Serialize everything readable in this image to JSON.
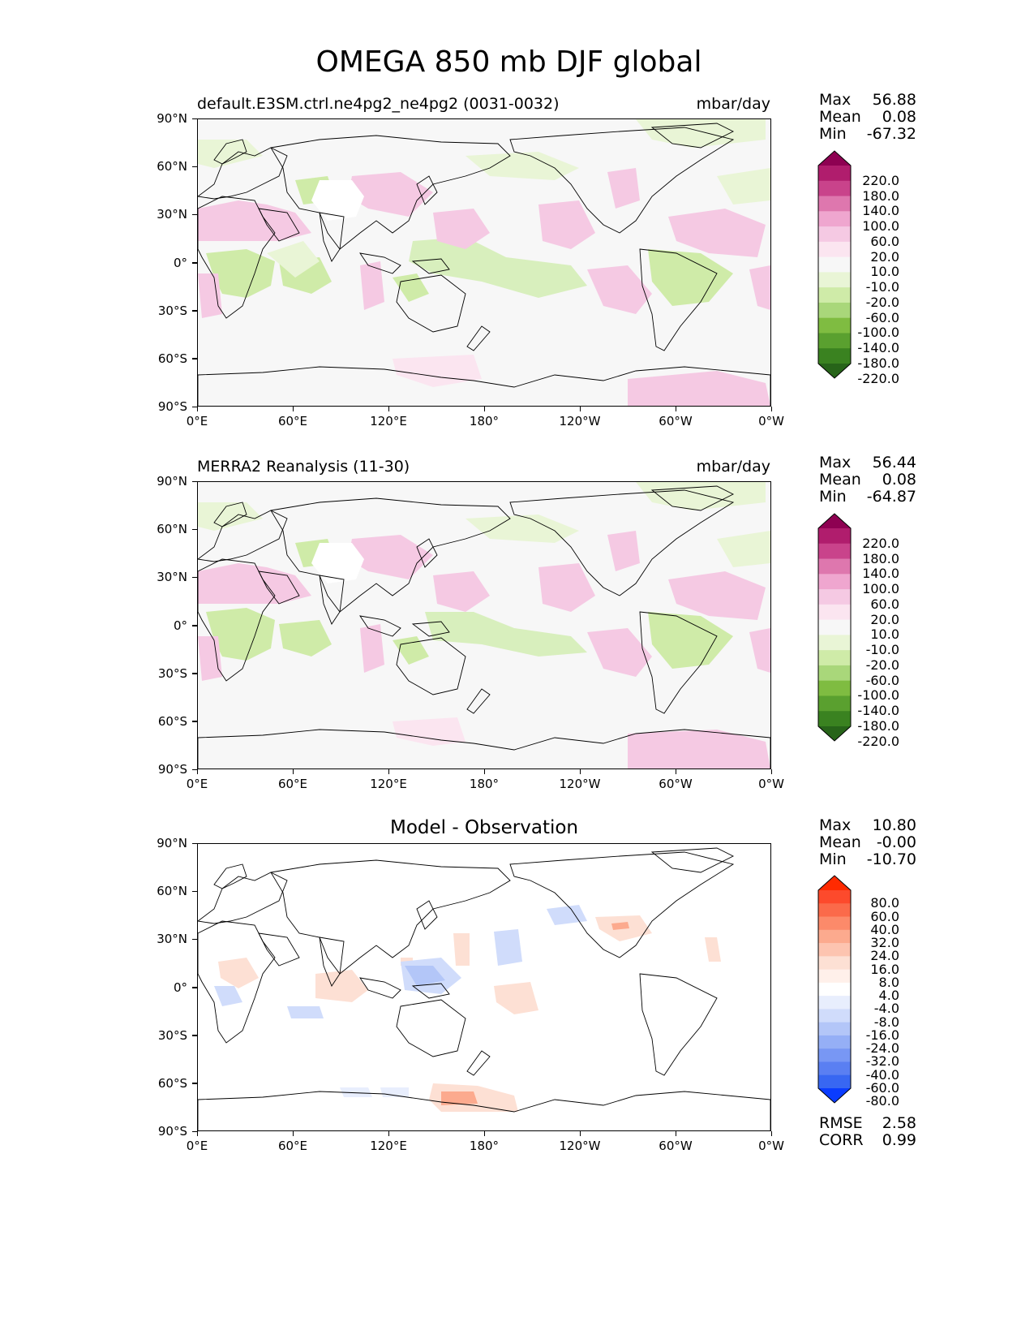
{
  "title": "OMEGA 850 mb DJF global",
  "axes": {
    "lat_ticks": [
      "90°N",
      "60°N",
      "30°N",
      "0°",
      "30°S",
      "60°S",
      "90°S"
    ],
    "lon_ticks": [
      "0°E",
      "60°E",
      "120°E",
      "180°",
      "120°W",
      "60°W",
      "0°W"
    ]
  },
  "panels": [
    {
      "title": "default.E3SM.ctrl.ne4pg2_ne4pg2 (0031-0032)",
      "units": "mbar/day",
      "stats": [
        {
          "label": "Max",
          "value": "56.88"
        },
        {
          "label": "Mean",
          "value": "0.08"
        },
        {
          "label": "Min",
          "value": "-67.32"
        }
      ],
      "colorbar": {
        "labels": [
          "220.0",
          "180.0",
          "140.0",
          "100.0",
          "60.0",
          "20.0",
          "10.0",
          "-10.0",
          "-20.0",
          "-60.0",
          "-100.0",
          "-140.0",
          "-180.0",
          "-220.0"
        ],
        "colors": [
          "#8e0152",
          "#b01d6d",
          "#c9438b",
          "#de77ae",
          "#efa6cf",
          "#f5c9e3",
          "#fbe5f0",
          "#f7f7f7",
          "#e9f5d6",
          "#cfeba8",
          "#a9d77a",
          "#7fbc41",
          "#5aa02f",
          "#3a8220",
          "#276419"
        ]
      }
    },
    {
      "title": "MERRA2 Reanalysis (11-30)",
      "units": "mbar/day",
      "stats": [
        {
          "label": "Max",
          "value": "56.44"
        },
        {
          "label": "Mean",
          "value": "0.08"
        },
        {
          "label": "Min",
          "value": "-64.87"
        }
      ],
      "colorbar": {
        "labels": [
          "220.0",
          "180.0",
          "140.0",
          "100.0",
          "60.0",
          "20.0",
          "10.0",
          "-10.0",
          "-20.0",
          "-60.0",
          "-100.0",
          "-140.0",
          "-180.0",
          "-220.0"
        ],
        "colors": [
          "#8e0152",
          "#b01d6d",
          "#c9438b",
          "#de77ae",
          "#efa6cf",
          "#f5c9e3",
          "#fbe5f0",
          "#f7f7f7",
          "#e9f5d6",
          "#cfeba8",
          "#a9d77a",
          "#7fbc41",
          "#5aa02f",
          "#3a8220",
          "#276419"
        ]
      }
    },
    {
      "title": "Model - Observation",
      "units": "",
      "stats": [
        {
          "label": "Max",
          "value": "10.80"
        },
        {
          "label": "Mean",
          "value": "-0.00"
        },
        {
          "label": "Min",
          "value": "-10.70"
        }
      ],
      "extra_stats": [
        {
          "label": "RMSE",
          "value": "2.58"
        },
        {
          "label": "CORR",
          "value": "0.99"
        }
      ],
      "colorbar": {
        "labels": [
          "80.0",
          "60.0",
          "40.0",
          "32.0",
          "24.0",
          "16.0",
          "8.0",
          "4.0",
          "-4.0",
          "-8.0",
          "-16.0",
          "-24.0",
          "-32.0",
          "-40.0",
          "-60.0",
          "-80.0"
        ],
        "colors": [
          "#ff2a00",
          "#fd4a2c",
          "#fb6a4a",
          "#fc8a6a",
          "#fcaa8e",
          "#fdc4b0",
          "#fde0d4",
          "#fff0ea",
          "#ffffff",
          "#e8eefd",
          "#d0dcfb",
          "#b3c6f8",
          "#95aff6",
          "#7897f4",
          "#5a7ff2",
          "#3867f2",
          "#0a3cff"
        ]
      }
    }
  ]
}
